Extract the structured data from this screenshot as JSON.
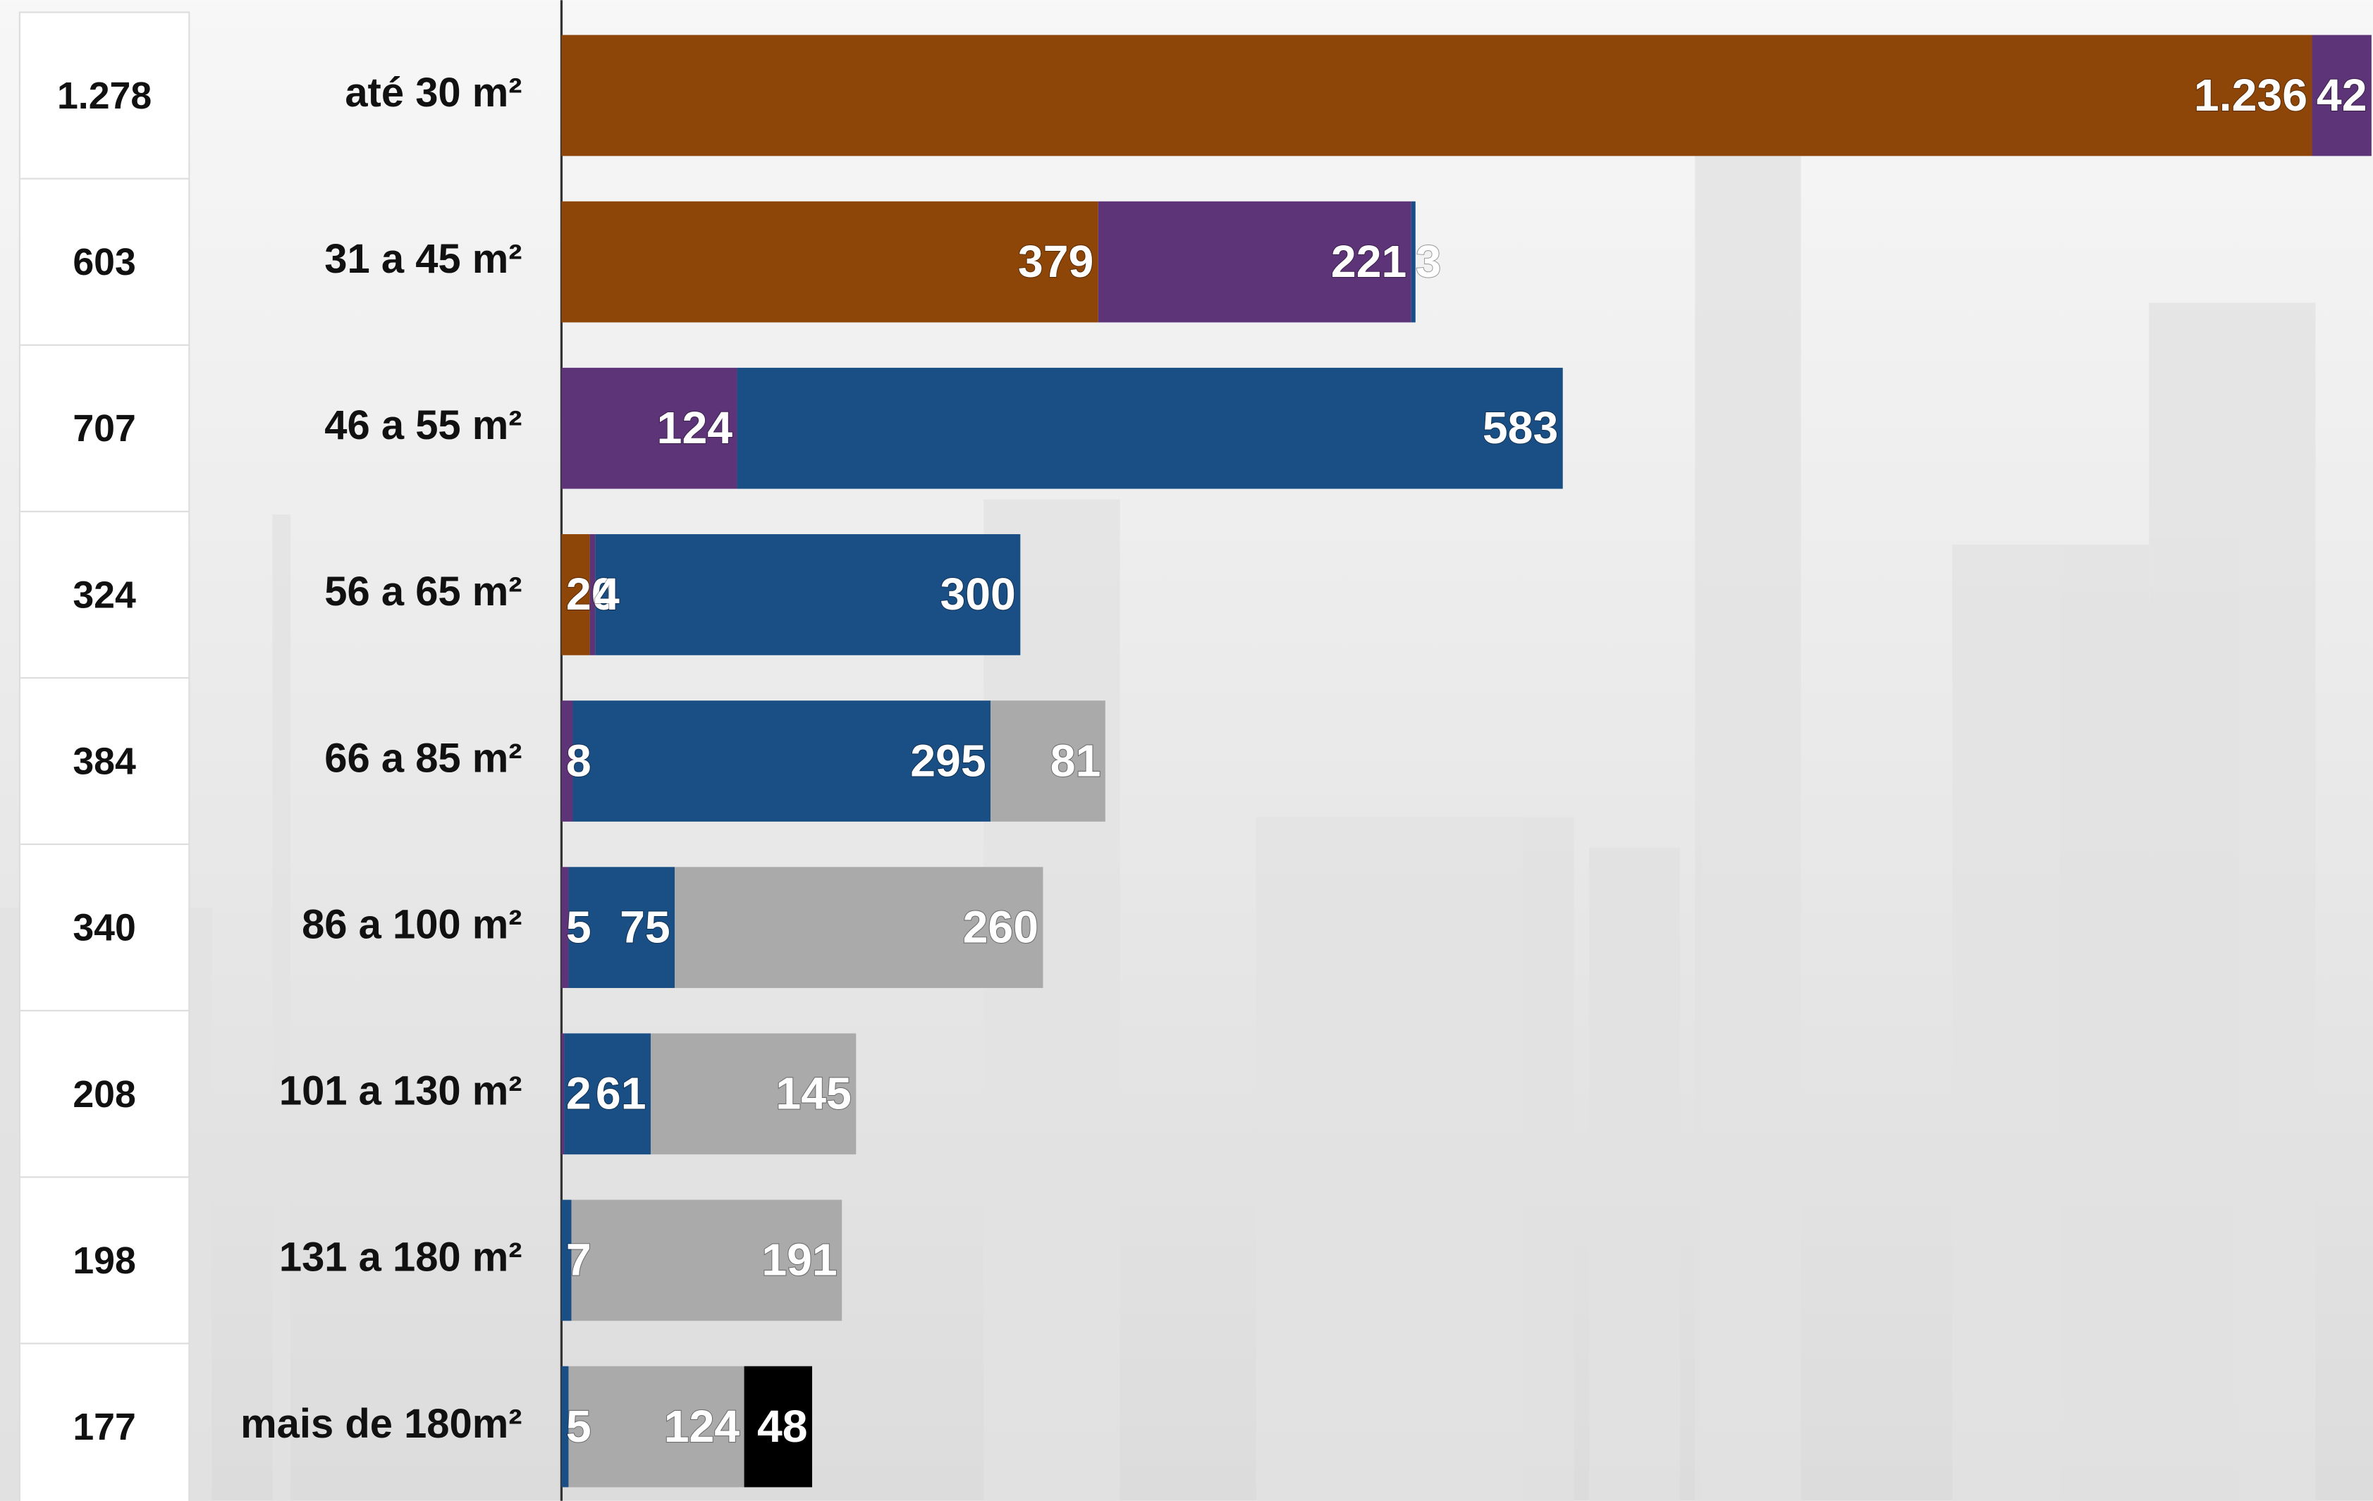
{
  "chart_data": {
    "type": "stacked-barh",
    "categories": [
      "até 30 m²",
      "31 a 45 m²",
      "46 a 55 m²",
      "56 a 65 m²",
      "66 a 85 m²",
      "86 a 100 m²",
      "101 a 130 m²",
      "131 a 180 m²",
      "mais de 180m²"
    ],
    "totals": [
      {
        "value": 1278,
        "label": "1.278"
      },
      603,
      707,
      324,
      384,
      340,
      208,
      198,
      177
    ],
    "series": [
      {
        "color": "#8e4508",
        "values": [
          1236,
          379,
          null,
          20,
          null,
          null,
          null,
          null,
          null
        ],
        "value_labels": [
          "1.236",
          "379",
          null,
          "20",
          null,
          null,
          null,
          null,
          null
        ]
      },
      {
        "color": "#5e3479",
        "values": [
          42,
          221,
          124,
          4,
          8,
          5,
          2,
          null,
          null
        ]
      },
      {
        "color": "#1a4f86",
        "values": [
          null,
          3,
          583,
          300,
          295,
          75,
          61,
          7,
          5
        ]
      },
      {
        "color": "#a9aaa9",
        "values": [
          null,
          null,
          null,
          null,
          81,
          260,
          145,
          191,
          124
        ]
      },
      {
        "color": "#000000",
        "values": [
          null,
          null,
          null,
          null,
          null,
          null,
          null,
          null,
          48
        ]
      }
    ]
  }
}
